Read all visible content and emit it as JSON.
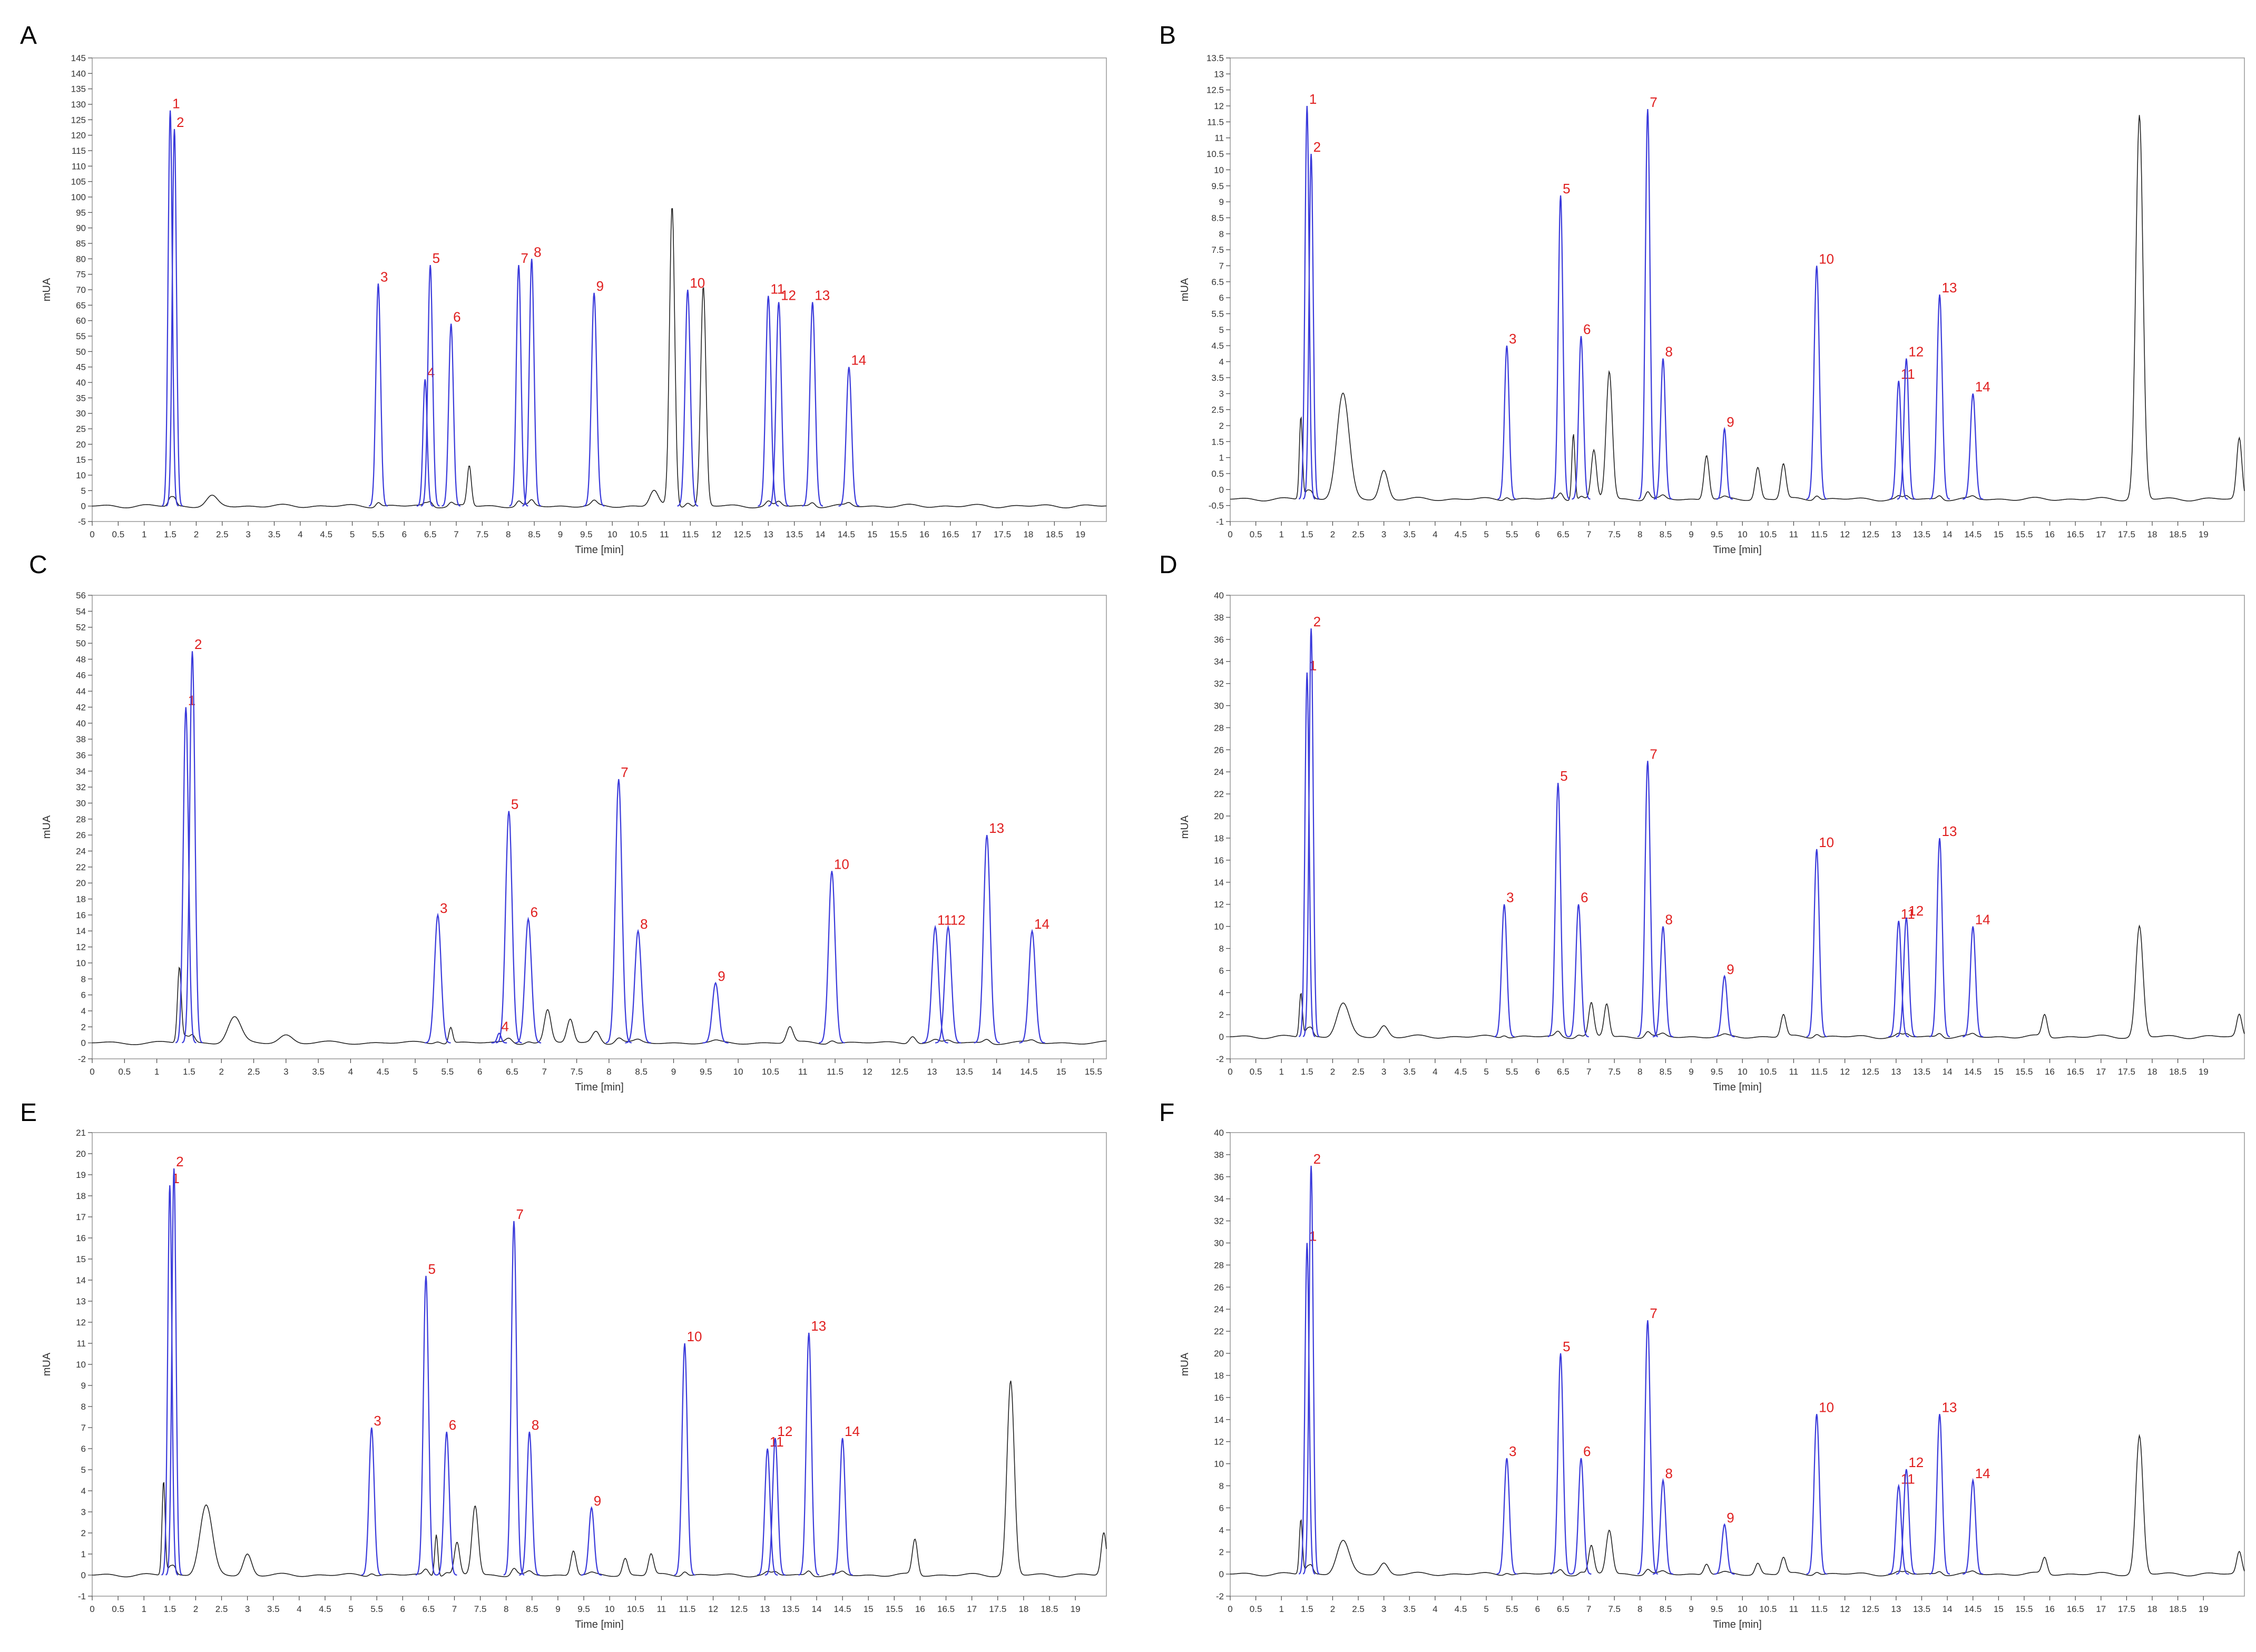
{
  "chart_data": [
    {
      "panel": "A",
      "type": "line",
      "xlabel": "Time [min]",
      "ylabel": "mUA",
      "xlim": [
        0,
        19.5
      ],
      "ylim": [
        -5,
        145
      ],
      "ytick_step": 5,
      "xmax_tick": 19,
      "baseline": 0,
      "peaks": [
        {
          "label": "1",
          "x": 1.5,
          "y": 128,
          "w": 0.04,
          "c": "b"
        },
        {
          "label": "2",
          "x": 1.58,
          "y": 122,
          "w": 0.04,
          "c": "b"
        },
        {
          "label": "3",
          "x": 5.5,
          "y": 72,
          "w": 0.045,
          "c": "b"
        },
        {
          "label": "4",
          "x": 6.4,
          "y": 41,
          "w": 0.04,
          "c": "b"
        },
        {
          "label": "5",
          "x": 6.5,
          "y": 78,
          "w": 0.045,
          "c": "b"
        },
        {
          "label": "6",
          "x": 6.9,
          "y": 59,
          "w": 0.045,
          "c": "b"
        },
        {
          "label": "7",
          "x": 8.2,
          "y": 78,
          "w": 0.045,
          "c": "b"
        },
        {
          "label": "8",
          "x": 8.45,
          "y": 80,
          "w": 0.045,
          "c": "b"
        },
        {
          "label": "9",
          "x": 9.65,
          "y": 69,
          "w": 0.05,
          "c": "b"
        },
        {
          "label": "10",
          "x": 11.45,
          "y": 70,
          "w": 0.05,
          "c": "b"
        },
        {
          "label": "11",
          "x": 13.0,
          "y": 68,
          "w": 0.05,
          "c": "b"
        },
        {
          "label": "12",
          "x": 13.2,
          "y": 66,
          "w": 0.05,
          "c": "b"
        },
        {
          "label": "13",
          "x": 13.85,
          "y": 66,
          "w": 0.05,
          "c": "b"
        },
        {
          "label": "14",
          "x": 14.55,
          "y": 45,
          "w": 0.05,
          "c": "b"
        },
        {
          "label": "",
          "x": 2.3,
          "y": 3,
          "w": 0.1,
          "c": "k"
        },
        {
          "label": "",
          "x": 7.25,
          "y": 13,
          "w": 0.04,
          "c": "k"
        },
        {
          "label": "",
          "x": 11.15,
          "y": 97,
          "w": 0.05,
          "c": "k"
        },
        {
          "label": "",
          "x": 11.75,
          "y": 71,
          "w": 0.05,
          "c": "k"
        },
        {
          "label": "",
          "x": 10.8,
          "y": 5,
          "w": 0.08,
          "c": "k"
        }
      ]
    },
    {
      "panel": "B",
      "type": "line",
      "xlabel": "Time [min]",
      "ylabel": "mUA",
      "xlim": [
        0,
        19.8
      ],
      "ylim": [
        -1,
        13.5
      ],
      "ytick_step": 0.5,
      "xmax_tick": 19,
      "baseline": -0.3,
      "peaks": [
        {
          "label": "1",
          "x": 1.5,
          "y": 12,
          "w": 0.04,
          "c": "b"
        },
        {
          "label": "2",
          "x": 1.58,
          "y": 10.5,
          "w": 0.04,
          "c": "b"
        },
        {
          "label": "3",
          "x": 5.4,
          "y": 4.5,
          "w": 0.045,
          "c": "b"
        },
        {
          "label": "5",
          "x": 6.45,
          "y": 9.2,
          "w": 0.045,
          "c": "b"
        },
        {
          "label": "6",
          "x": 6.85,
          "y": 4.8,
          "w": 0.045,
          "c": "b"
        },
        {
          "label": "7",
          "x": 8.15,
          "y": 11.9,
          "w": 0.045,
          "c": "b"
        },
        {
          "label": "8",
          "x": 8.45,
          "y": 4.1,
          "w": 0.045,
          "c": "b"
        },
        {
          "label": "9",
          "x": 9.65,
          "y": 1.9,
          "w": 0.04,
          "c": "b"
        },
        {
          "label": "10",
          "x": 11.45,
          "y": 7.0,
          "w": 0.05,
          "c": "b"
        },
        {
          "label": "11",
          "x": 13.05,
          "y": 3.4,
          "w": 0.045,
          "c": "b"
        },
        {
          "label": "12",
          "x": 13.2,
          "y": 4.1,
          "w": 0.045,
          "c": "b"
        },
        {
          "label": "13",
          "x": 13.85,
          "y": 6.1,
          "w": 0.05,
          "c": "b"
        },
        {
          "label": "14",
          "x": 14.5,
          "y": 3.0,
          "w": 0.05,
          "c": "b"
        },
        {
          "label": "",
          "x": 2.2,
          "y": 3.0,
          "w": 0.12,
          "c": "k"
        },
        {
          "label": "",
          "x": 1.38,
          "y": 2.3,
          "w": 0.03,
          "c": "k"
        },
        {
          "label": "",
          "x": 3.0,
          "y": 0.6,
          "w": 0.08,
          "c": "k"
        },
        {
          "label": "",
          "x": 7.4,
          "y": 3.7,
          "w": 0.06,
          "c": "k"
        },
        {
          "label": "",
          "x": 6.7,
          "y": 1.8,
          "w": 0.03,
          "c": "k"
        },
        {
          "label": "",
          "x": 7.1,
          "y": 1.2,
          "w": 0.05,
          "c": "k"
        },
        {
          "label": "",
          "x": 9.3,
          "y": 1.1,
          "w": 0.05,
          "c": "k"
        },
        {
          "label": "",
          "x": 10.3,
          "y": 0.7,
          "w": 0.05,
          "c": "k"
        },
        {
          "label": "",
          "x": 10.8,
          "y": 0.8,
          "w": 0.05,
          "c": "k"
        },
        {
          "label": "",
          "x": 17.75,
          "y": 11.7,
          "w": 0.07,
          "c": "k"
        },
        {
          "label": "",
          "x": 19.7,
          "y": 1.6,
          "w": 0.05,
          "c": "k"
        }
      ]
    },
    {
      "panel": "C",
      "type": "line",
      "xlabel": "Time [min]",
      "ylabel": "mUA",
      "xlim": [
        0,
        15.7
      ],
      "ylim": [
        -2,
        56
      ],
      "ytick_step": 2,
      "xmax_tick": 15.5,
      "baseline": 0,
      "peaks": [
        {
          "label": "1",
          "x": 1.45,
          "y": 42,
          "w": 0.04,
          "c": "b"
        },
        {
          "label": "2",
          "x": 1.55,
          "y": 49,
          "w": 0.04,
          "c": "b"
        },
        {
          "label": "3",
          "x": 5.35,
          "y": 16,
          "w": 0.05,
          "c": "b"
        },
        {
          "label": "4",
          "x": 6.3,
          "y": 1.2,
          "w": 0.03,
          "c": "b"
        },
        {
          "label": "5",
          "x": 6.45,
          "y": 29,
          "w": 0.05,
          "c": "b"
        },
        {
          "label": "6",
          "x": 6.75,
          "y": 15.5,
          "w": 0.05,
          "c": "b"
        },
        {
          "label": "7",
          "x": 8.15,
          "y": 33,
          "w": 0.05,
          "c": "b"
        },
        {
          "label": "8",
          "x": 8.45,
          "y": 14,
          "w": 0.05,
          "c": "b"
        },
        {
          "label": "9",
          "x": 9.65,
          "y": 7.5,
          "w": 0.05,
          "c": "b"
        },
        {
          "label": "10",
          "x": 11.45,
          "y": 21.5,
          "w": 0.05,
          "c": "b"
        },
        {
          "label": "11",
          "x": 13.05,
          "y": 14.5,
          "w": 0.05,
          "c": "b"
        },
        {
          "label": "12",
          "x": 13.25,
          "y": 14.5,
          "w": 0.05,
          "c": "b"
        },
        {
          "label": "13",
          "x": 13.85,
          "y": 26,
          "w": 0.05,
          "c": "b"
        },
        {
          "label": "14",
          "x": 14.55,
          "y": 14,
          "w": 0.05,
          "c": "b"
        },
        {
          "label": "",
          "x": 1.35,
          "y": 9.5,
          "w": 0.03,
          "c": "k"
        },
        {
          "label": "",
          "x": 2.2,
          "y": 3.2,
          "w": 0.1,
          "c": "k"
        },
        {
          "label": "",
          "x": 3.0,
          "y": 1.0,
          "w": 0.1,
          "c": "k"
        },
        {
          "label": "",
          "x": 5.55,
          "y": 2.0,
          "w": 0.03,
          "c": "k"
        },
        {
          "label": "",
          "x": 7.05,
          "y": 4.0,
          "w": 0.05,
          "c": "k"
        },
        {
          "label": "",
          "x": 7.4,
          "y": 3.0,
          "w": 0.05,
          "c": "k"
        },
        {
          "label": "",
          "x": 7.8,
          "y": 1.5,
          "w": 0.06,
          "c": "k"
        },
        {
          "label": "",
          "x": 10.8,
          "y": 2.0,
          "w": 0.05,
          "c": "k"
        },
        {
          "label": "",
          "x": 12.7,
          "y": 1.0,
          "w": 0.05,
          "c": "k"
        }
      ]
    },
    {
      "panel": "D",
      "type": "line",
      "xlabel": "Time [min]",
      "ylabel": "mUA",
      "xlim": [
        0,
        19.8
      ],
      "ylim": [
        -2,
        40
      ],
      "ytick_step": 2,
      "xmax_tick": 19,
      "baseline": 0,
      "peaks": [
        {
          "label": "1",
          "x": 1.5,
          "y": 33,
          "w": 0.04,
          "c": "b"
        },
        {
          "label": "2",
          "x": 1.58,
          "y": 37,
          "w": 0.04,
          "c": "b"
        },
        {
          "label": "3",
          "x": 5.35,
          "y": 12,
          "w": 0.05,
          "c": "b"
        },
        {
          "label": "5",
          "x": 6.4,
          "y": 23,
          "w": 0.05,
          "c": "b"
        },
        {
          "label": "6",
          "x": 6.8,
          "y": 12,
          "w": 0.05,
          "c": "b"
        },
        {
          "label": "7",
          "x": 8.15,
          "y": 25,
          "w": 0.05,
          "c": "b"
        },
        {
          "label": "8",
          "x": 8.45,
          "y": 10,
          "w": 0.05,
          "c": "b"
        },
        {
          "label": "9",
          "x": 9.65,
          "y": 5.5,
          "w": 0.05,
          "c": "b"
        },
        {
          "label": "10",
          "x": 11.45,
          "y": 17,
          "w": 0.05,
          "c": "b"
        },
        {
          "label": "11",
          "x": 13.05,
          "y": 10.5,
          "w": 0.05,
          "c": "b"
        },
        {
          "label": "12",
          "x": 13.2,
          "y": 10.8,
          "w": 0.05,
          "c": "b"
        },
        {
          "label": "13",
          "x": 13.85,
          "y": 18,
          "w": 0.05,
          "c": "b"
        },
        {
          "label": "14",
          "x": 14.5,
          "y": 10,
          "w": 0.05,
          "c": "b"
        },
        {
          "label": "",
          "x": 1.38,
          "y": 4.0,
          "w": 0.03,
          "c": "k"
        },
        {
          "label": "",
          "x": 2.2,
          "y": 3.0,
          "w": 0.12,
          "c": "k"
        },
        {
          "label": "",
          "x": 3.0,
          "y": 1.0,
          "w": 0.08,
          "c": "k"
        },
        {
          "label": "",
          "x": 7.05,
          "y": 3.0,
          "w": 0.05,
          "c": "k"
        },
        {
          "label": "",
          "x": 7.35,
          "y": 3.0,
          "w": 0.05,
          "c": "k"
        },
        {
          "label": "",
          "x": 10.8,
          "y": 2.0,
          "w": 0.05,
          "c": "k"
        },
        {
          "label": "",
          "x": 15.9,
          "y": 2.0,
          "w": 0.05,
          "c": "k"
        },
        {
          "label": "",
          "x": 17.75,
          "y": 10,
          "w": 0.07,
          "c": "k"
        },
        {
          "label": "",
          "x": 19.7,
          "y": 2.0,
          "w": 0.05,
          "c": "k"
        }
      ]
    },
    {
      "panel": "E",
      "type": "line",
      "xlabel": "Time [min]",
      "ylabel": "mUA",
      "xlim": [
        0,
        19.6
      ],
      "ylim": [
        -1,
        21
      ],
      "ytick_step": 1,
      "xmax_tick": 19,
      "baseline": 0,
      "peaks": [
        {
          "label": "1",
          "x": 1.5,
          "y": 18.5,
          "w": 0.04,
          "c": "b"
        },
        {
          "label": "2",
          "x": 1.58,
          "y": 19.3,
          "w": 0.04,
          "c": "b"
        },
        {
          "label": "3",
          "x": 5.4,
          "y": 7.0,
          "w": 0.05,
          "c": "b"
        },
        {
          "label": "5",
          "x": 6.45,
          "y": 14.2,
          "w": 0.05,
          "c": "b"
        },
        {
          "label": "6",
          "x": 6.85,
          "y": 6.8,
          "w": 0.05,
          "c": "b"
        },
        {
          "label": "7",
          "x": 8.15,
          "y": 16.8,
          "w": 0.05,
          "c": "b"
        },
        {
          "label": "8",
          "x": 8.45,
          "y": 6.8,
          "w": 0.05,
          "c": "b"
        },
        {
          "label": "9",
          "x": 9.65,
          "y": 3.2,
          "w": 0.05,
          "c": "b"
        },
        {
          "label": "10",
          "x": 11.45,
          "y": 11.0,
          "w": 0.05,
          "c": "b"
        },
        {
          "label": "11",
          "x": 13.05,
          "y": 6.0,
          "w": 0.05,
          "c": "b"
        },
        {
          "label": "12",
          "x": 13.2,
          "y": 6.5,
          "w": 0.05,
          "c": "b"
        },
        {
          "label": "13",
          "x": 13.85,
          "y": 11.5,
          "w": 0.05,
          "c": "b"
        },
        {
          "label": "14",
          "x": 14.5,
          "y": 6.5,
          "w": 0.05,
          "c": "b"
        },
        {
          "label": "",
          "x": 1.38,
          "y": 4.5,
          "w": 0.03,
          "c": "k"
        },
        {
          "label": "",
          "x": 2.2,
          "y": 3.3,
          "w": 0.12,
          "c": "k"
        },
        {
          "label": "",
          "x": 3.0,
          "y": 1.0,
          "w": 0.08,
          "c": "k"
        },
        {
          "label": "",
          "x": 6.65,
          "y": 2.0,
          "w": 0.03,
          "c": "k"
        },
        {
          "label": "",
          "x": 7.05,
          "y": 1.5,
          "w": 0.05,
          "c": "k"
        },
        {
          "label": "",
          "x": 7.4,
          "y": 3.3,
          "w": 0.06,
          "c": "k"
        },
        {
          "label": "",
          "x": 9.3,
          "y": 1.2,
          "w": 0.05,
          "c": "k"
        },
        {
          "label": "",
          "x": 10.3,
          "y": 0.8,
          "w": 0.05,
          "c": "k"
        },
        {
          "label": "",
          "x": 10.8,
          "y": 1.0,
          "w": 0.05,
          "c": "k"
        },
        {
          "label": "",
          "x": 15.9,
          "y": 1.7,
          "w": 0.05,
          "c": "k"
        },
        {
          "label": "",
          "x": 17.75,
          "y": 9.2,
          "w": 0.07,
          "c": "k"
        },
        {
          "label": "",
          "x": 19.55,
          "y": 2.0,
          "w": 0.05,
          "c": "k"
        }
      ]
    },
    {
      "panel": "F",
      "type": "line",
      "xlabel": "Time [min]",
      "ylabel": "mUA",
      "xlim": [
        0,
        19.8
      ],
      "ylim": [
        -2,
        40
      ],
      "ytick_step": 2,
      "xmax_tick": 19,
      "baseline": 0,
      "peaks": [
        {
          "label": "1",
          "x": 1.5,
          "y": 30,
          "w": 0.04,
          "c": "b"
        },
        {
          "label": "2",
          "x": 1.58,
          "y": 37,
          "w": 0.04,
          "c": "b"
        },
        {
          "label": "3",
          "x": 5.4,
          "y": 10.5,
          "w": 0.05,
          "c": "b"
        },
        {
          "label": "5",
          "x": 6.45,
          "y": 20,
          "w": 0.05,
          "c": "b"
        },
        {
          "label": "6",
          "x": 6.85,
          "y": 10.5,
          "w": 0.05,
          "c": "b"
        },
        {
          "label": "7",
          "x": 8.15,
          "y": 23,
          "w": 0.05,
          "c": "b"
        },
        {
          "label": "8",
          "x": 8.45,
          "y": 8.5,
          "w": 0.05,
          "c": "b"
        },
        {
          "label": "9",
          "x": 9.65,
          "y": 4.5,
          "w": 0.05,
          "c": "b"
        },
        {
          "label": "10",
          "x": 11.45,
          "y": 14.5,
          "w": 0.05,
          "c": "b"
        },
        {
          "label": "11",
          "x": 13.05,
          "y": 8.0,
          "w": 0.05,
          "c": "b"
        },
        {
          "label": "12",
          "x": 13.2,
          "y": 9.5,
          "w": 0.05,
          "c": "b"
        },
        {
          "label": "13",
          "x": 13.85,
          "y": 14.5,
          "w": 0.05,
          "c": "b"
        },
        {
          "label": "14",
          "x": 14.5,
          "y": 8.5,
          "w": 0.05,
          "c": "b"
        },
        {
          "label": "",
          "x": 1.38,
          "y": 5.0,
          "w": 0.03,
          "c": "k"
        },
        {
          "label": "",
          "x": 2.2,
          "y": 3.0,
          "w": 0.12,
          "c": "k"
        },
        {
          "label": "",
          "x": 3.0,
          "y": 1.0,
          "w": 0.08,
          "c": "k"
        },
        {
          "label": "",
          "x": 7.05,
          "y": 2.5,
          "w": 0.05,
          "c": "k"
        },
        {
          "label": "",
          "x": 7.4,
          "y": 4.0,
          "w": 0.06,
          "c": "k"
        },
        {
          "label": "",
          "x": 9.3,
          "y": 1.0,
          "w": 0.05,
          "c": "k"
        },
        {
          "label": "",
          "x": 10.3,
          "y": 1.0,
          "w": 0.05,
          "c": "k"
        },
        {
          "label": "",
          "x": 10.8,
          "y": 1.5,
          "w": 0.05,
          "c": "k"
        },
        {
          "label": "",
          "x": 15.9,
          "y": 1.5,
          "w": 0.05,
          "c": "k"
        },
        {
          "label": "",
          "x": 17.75,
          "y": 12.5,
          "w": 0.07,
          "c": "k"
        },
        {
          "label": "",
          "x": 19.7,
          "y": 2.0,
          "w": 0.05,
          "c": "k"
        }
      ]
    }
  ],
  "colors": {
    "peak": "#3a3adb",
    "trace": "#222222",
    "label": "#e02020",
    "axis": "#444444"
  }
}
